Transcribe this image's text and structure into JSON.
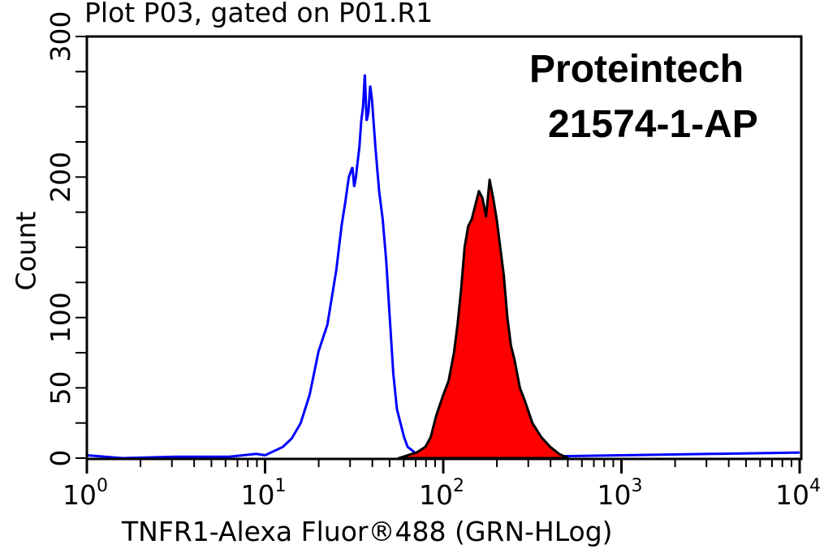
{
  "title": "Plot P03, gated on P01.R1",
  "brand": {
    "line1": "Proteintech",
    "line2": "21574-1-AP"
  },
  "colors": {
    "control": "#0000ff",
    "sample_fill": "#ff0000",
    "sample_outline": "#000000",
    "axis": "#000000"
  },
  "chart_data": {
    "type": "area",
    "title": "Plot P03, gated on P01.R1",
    "xlabel": "TNFR1-Alexa Fluor®488 (GRN-HLog)",
    "ylabel": "Count",
    "xscale": "log",
    "xlim": [
      1,
      10000
    ],
    "ylim": [
      0,
      300
    ],
    "x_ticks": [
      {
        "base": "10",
        "exp": "0"
      },
      {
        "base": "10",
        "exp": "1"
      },
      {
        "base": "10",
        "exp": "2"
      },
      {
        "base": "10",
        "exp": "3"
      },
      {
        "base": "10",
        "exp": "4"
      }
    ],
    "y_ticks": [
      0,
      50,
      100,
      200,
      300
    ],
    "grid": false,
    "annotations": [
      "Proteintech",
      "21574-1-AP"
    ],
    "series": [
      {
        "name": "control (blue outline)",
        "style": "line",
        "log10x": [
          0.0,
          0.2,
          0.5,
          0.8,
          0.95,
          1.0,
          1.05,
          1.1,
          1.15,
          1.2,
          1.25,
          1.3,
          1.35,
          1.4,
          1.43,
          1.45,
          1.47,
          1.49,
          1.5,
          1.51,
          1.53,
          1.54,
          1.55,
          1.56,
          1.57,
          1.58,
          1.59,
          1.6,
          1.62,
          1.64,
          1.66,
          1.68,
          1.7,
          1.72,
          1.74,
          1.76,
          1.78,
          1.8,
          1.85,
          1.9,
          2.0,
          2.5,
          3.0,
          3.5,
          4.0
        ],
        "counts": [
          2,
          0,
          1,
          1,
          3,
          2,
          5,
          8,
          14,
          25,
          45,
          76,
          95,
          134,
          166,
          182,
          200,
          207,
          193,
          200,
          222,
          240,
          250,
          273,
          240,
          246,
          265,
          255,
          220,
          190,
          170,
          140,
          100,
          60,
          35,
          25,
          15,
          8,
          3,
          1,
          0,
          1,
          2,
          3,
          4
        ]
      },
      {
        "name": "TNFR1 stained (red filled)",
        "style": "filled",
        "log10x": [
          1.75,
          1.8,
          1.85,
          1.9,
          1.93,
          1.96,
          2.0,
          2.03,
          2.06,
          2.08,
          2.1,
          2.12,
          2.14,
          2.16,
          2.18,
          2.2,
          2.22,
          2.24,
          2.26,
          2.28,
          2.3,
          2.32,
          2.34,
          2.36,
          2.38,
          2.4,
          2.43,
          2.46,
          2.5,
          2.55,
          2.6,
          2.65,
          2.7
        ],
        "counts": [
          0,
          2,
          4,
          8,
          15,
          30,
          45,
          55,
          75,
          95,
          120,
          150,
          165,
          170,
          180,
          190,
          185,
          172,
          198,
          185,
          170,
          150,
          130,
          100,
          80,
          70,
          50,
          40,
          25,
          15,
          8,
          3,
          0
        ]
      }
    ]
  }
}
